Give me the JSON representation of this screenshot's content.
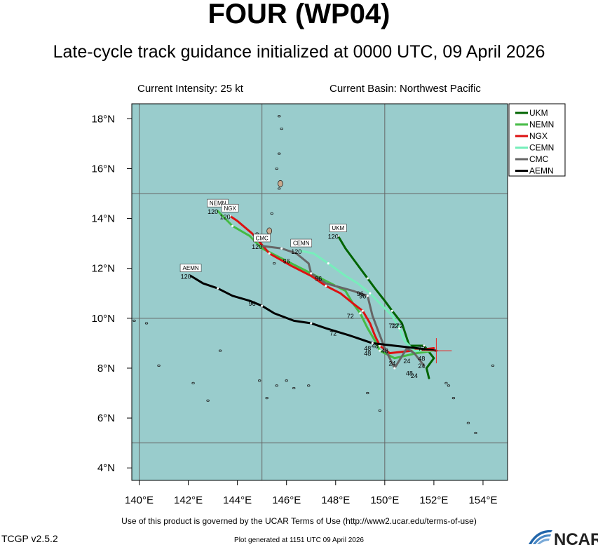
{
  "header": {
    "title": "FOUR (WP04)",
    "subtitle": "Late-cycle track guidance initialized at 0000 UTC, 09 April 2026",
    "intensity": "Current Intensity: 25 kt",
    "basin": "Current Basin: Northwest Pacific"
  },
  "footer": {
    "terms": "Use of this product is governed by the UCAR Terms of Use (http://www2.ucar.edu/terms-of-use)",
    "version": "TCGP v2.5.2",
    "generated": "Plot generated at 1151 UTC   09 April 2026",
    "logo_text": "NCAR"
  },
  "colors": {
    "ocean": "#99cccc",
    "grid": "#666666",
    "land": "#c9a98c"
  },
  "chart_data": {
    "type": "map-tracks",
    "x_range": [
      139.7,
      155.0
    ],
    "y_range": [
      3.5,
      18.6
    ],
    "x_ticks": [
      140,
      142,
      144,
      146,
      148,
      150,
      152,
      154
    ],
    "x_tick_labels": [
      "140°E",
      "142°E",
      "144°E",
      "146°E",
      "148°E",
      "150°E",
      "152°E",
      "154°E"
    ],
    "y_ticks": [
      4,
      6,
      8,
      10,
      12,
      14,
      16,
      18
    ],
    "y_tick_labels": [
      "4°N",
      "6°N",
      "8°N",
      "10°N",
      "12°N",
      "14°N",
      "16°N",
      "18°N"
    ],
    "grid_lons": [
      140,
      145,
      150,
      155
    ],
    "grid_lats": [
      5,
      10,
      15
    ],
    "current_position": [
      152.1,
      8.7
    ],
    "legend_position": "top-right",
    "series": [
      {
        "name": "UKM",
        "color": "#006400",
        "points": [
          [
            151.8,
            7.6
          ],
          [
            151.7,
            8.0
          ],
          [
            152.0,
            8.4
          ],
          [
            151.6,
            8.9
          ],
          [
            151.0,
            8.9
          ],
          [
            150.7,
            9.8
          ],
          [
            150.3,
            10.3
          ],
          [
            150.0,
            10.7
          ],
          [
            149.6,
            11.2
          ],
          [
            149.3,
            11.6
          ],
          [
            149.0,
            12.0
          ],
          [
            148.4,
            12.8
          ],
          [
            148.1,
            13.3
          ]
        ],
        "label": "UKM",
        "label_hour": "120",
        "label_pos": [
          148.1,
          13.35
        ],
        "hour_marks": [
          {
            "h": "72",
            "p": [
              150.3,
              9.6
            ]
          }
        ]
      },
      {
        "name": "NEMN",
        "color": "#44bb44",
        "points": [
          [
            152.0,
            8.7
          ],
          [
            151.3,
            8.6
          ],
          [
            150.4,
            8.4
          ],
          [
            149.8,
            8.7
          ],
          [
            149.6,
            9.1
          ],
          [
            149.3,
            9.6
          ],
          [
            149.0,
            10.2
          ],
          [
            148.7,
            10.6
          ],
          [
            148.4,
            11.1
          ],
          [
            148.0,
            11.3
          ],
          [
            147.4,
            11.6
          ],
          [
            146.8,
            11.9
          ],
          [
            146.0,
            12.3
          ],
          [
            145.0,
            12.8
          ],
          [
            144.5,
            13.3
          ],
          [
            143.8,
            13.7
          ],
          [
            143.2,
            14.3
          ]
        ],
        "label": "NEMN",
        "label_hour": "120",
        "label_pos": [
          143.2,
          14.35
        ],
        "hour_marks": [
          {
            "h": "72",
            "p": [
              148.6,
              10.0
            ]
          }
        ]
      },
      {
        "name": "NGX",
        "color": "#dd1111",
        "points": [
          [
            152.0,
            8.8
          ],
          [
            151.1,
            8.7
          ],
          [
            150.2,
            8.6
          ],
          [
            149.8,
            8.9
          ],
          [
            149.6,
            9.3
          ],
          [
            149.4,
            9.8
          ],
          [
            149.1,
            10.3
          ],
          [
            148.7,
            10.6
          ],
          [
            148.2,
            11.0
          ],
          [
            147.6,
            11.3
          ],
          [
            147.0,
            11.7
          ],
          [
            146.2,
            12.1
          ],
          [
            145.3,
            12.6
          ],
          [
            144.6,
            13.4
          ],
          [
            144.0,
            13.9
          ],
          [
            143.7,
            14.1
          ]
        ],
        "label": "NGX",
        "label_hour": "120",
        "label_pos": [
          143.7,
          14.15
        ],
        "hour_marks": [
          {
            "h": "96",
            "p": [
              146.0,
              12.2
            ]
          }
        ]
      },
      {
        "name": "CEMN",
        "color": "#77eebb",
        "points": [
          [
            152.0,
            8.7
          ],
          [
            151.2,
            8.7
          ],
          [
            150.8,
            9.1
          ],
          [
            150.6,
            9.6
          ],
          [
            150.3,
            10.1
          ],
          [
            149.9,
            10.5
          ],
          [
            149.4,
            11.0
          ],
          [
            148.9,
            11.4
          ],
          [
            148.4,
            11.7
          ],
          [
            147.7,
            12.2
          ],
          [
            147.1,
            12.6
          ],
          [
            146.6,
            12.7
          ]
        ],
        "label": "CEMN",
        "label_hour": "120",
        "label_pos": [
          146.6,
          12.75
        ],
        "hour_marks": [
          {
            "h": "72",
            "p": [
              150.4,
              9.6
            ]
          }
        ]
      },
      {
        "name": "CMC",
        "color": "#666666",
        "points": [
          [
            151.6,
            8.1
          ],
          [
            151.2,
            8.6
          ],
          [
            150.9,
            8.8
          ],
          [
            150.4,
            8.0
          ],
          [
            150.0,
            8.8
          ],
          [
            149.5,
            10.1
          ],
          [
            149.3,
            10.9
          ],
          [
            148.7,
            11.1
          ],
          [
            147.6,
            11.4
          ],
          [
            147.0,
            11.8
          ],
          [
            146.9,
            12.2
          ],
          [
            146.4,
            12.6
          ],
          [
            145.8,
            12.8
          ],
          [
            145.0,
            12.9
          ]
        ],
        "label": "CMC",
        "label_hour": "120",
        "label_pos": [
          145.0,
          12.95
        ],
        "hour_marks": [
          {
            "h": "96",
            "p": [
              149.0,
              10.9
            ]
          },
          {
            "h": "96",
            "p": [
              147.3,
              11.5
            ]
          }
        ]
      },
      {
        "name": "AEMN",
        "color": "#000000",
        "points": [
          [
            152.1,
            8.7
          ],
          [
            151.3,
            8.8
          ],
          [
            150.4,
            8.9
          ],
          [
            149.5,
            9.0
          ],
          [
            148.6,
            9.3
          ],
          [
            147.6,
            9.6
          ],
          [
            147.0,
            9.8
          ],
          [
            146.3,
            9.9
          ],
          [
            145.5,
            10.2
          ],
          [
            145.0,
            10.5
          ],
          [
            144.5,
            10.7
          ],
          [
            143.8,
            10.9
          ],
          [
            143.2,
            11.2
          ],
          [
            142.6,
            11.4
          ],
          [
            142.1,
            11.7
          ]
        ],
        "label": "AEMN",
        "label_hour": "120",
        "label_pos": [
          142.1,
          11.75
        ],
        "hour_marks": [
          {
            "h": "96",
            "p": [
              144.6,
              10.5
            ]
          },
          {
            "h": "72",
            "p": [
              147.9,
              9.3
            ]
          },
          {
            "h": "48",
            "p": [
              149.3,
              8.7
            ]
          }
        ]
      }
    ],
    "hour_labels": [
      {
        "h": "24",
        "p": [
          150.3,
          8.1
        ]
      },
      {
        "h": "24",
        "p": [
          150.9,
          8.2
        ]
      },
      {
        "h": "24",
        "p": [
          151.2,
          7.6
        ]
      },
      {
        "h": "48",
        "p": [
          151.0,
          7.7
        ]
      },
      {
        "h": "48",
        "p": [
          150.0,
          8.6
        ]
      },
      {
        "h": "48",
        "p": [
          149.6,
          8.8
        ]
      },
      {
        "h": "48",
        "p": [
          149.3,
          8.5
        ]
      },
      {
        "h": "72",
        "p": [
          150.6,
          9.6
        ]
      },
      {
        "h": "72",
        "p": [
          151.5,
          8.7
        ]
      },
      {
        "h": "24",
        "p": [
          151.5,
          8.0
        ]
      },
      {
        "h": "48",
        "p": [
          151.5,
          8.3
        ]
      },
      {
        "h": "96",
        "p": [
          149.1,
          10.8
        ]
      }
    ],
    "islands": [
      [
        139.8,
        9.9
      ],
      [
        140.3,
        9.8
      ],
      [
        140.8,
        8.1
      ],
      [
        142.2,
        7.4
      ],
      [
        142.8,
        6.7
      ],
      [
        143.3,
        8.7
      ],
      [
        144.9,
        7.5
      ],
      [
        145.2,
        6.8
      ],
      [
        145.6,
        7.3
      ],
      [
        146.0,
        7.5
      ],
      [
        146.3,
        7.2
      ],
      [
        146.9,
        7.3
      ],
      [
        149.3,
        7.0
      ],
      [
        149.8,
        6.3
      ],
      [
        152.5,
        7.4
      ],
      [
        152.6,
        7.3
      ],
      [
        152.8,
        6.8
      ],
      [
        153.4,
        5.8
      ],
      [
        153.7,
        5.4
      ],
      [
        154.4,
        8.1
      ],
      [
        145.7,
        18.1
      ],
      [
        145.8,
        17.6
      ],
      [
        145.7,
        16.6
      ],
      [
        145.6,
        16.0
      ],
      [
        145.7,
        15.2
      ],
      [
        145.4,
        14.2
      ],
      [
        145.5,
        12.2
      ],
      [
        144.8,
        13.4
      ]
    ]
  }
}
